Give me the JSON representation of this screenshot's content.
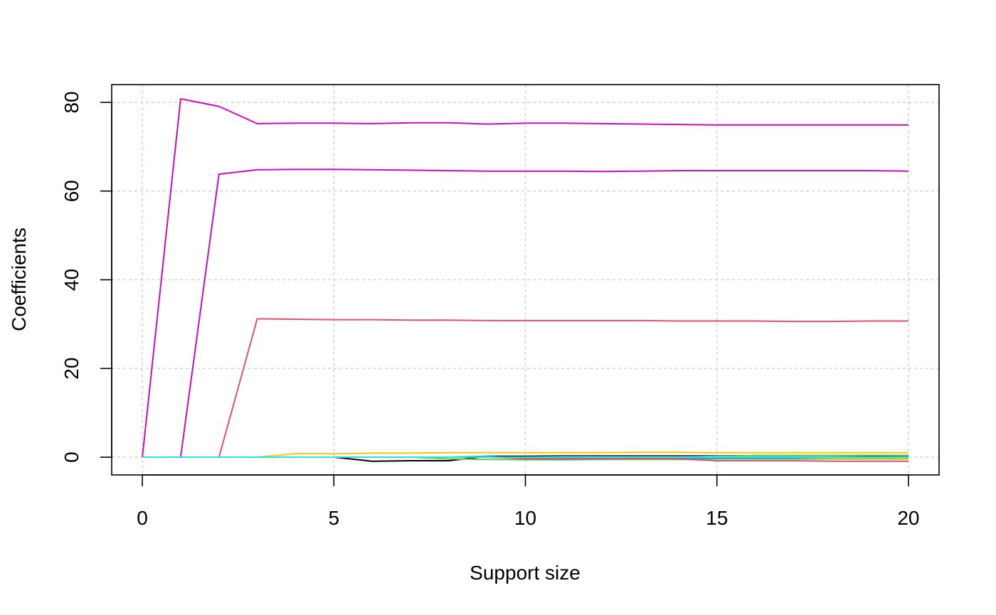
{
  "chart_data": {
    "type": "line",
    "title": "",
    "xlabel": "Support size",
    "ylabel": "Coefficients",
    "xlim": [
      -0.8,
      20.8
    ],
    "ylim": [
      -4,
      84
    ],
    "xticks": [
      0,
      5,
      10,
      15,
      20
    ],
    "yticks": [
      0,
      20,
      40,
      60,
      80
    ],
    "grid": true,
    "legend": "none",
    "x": [
      0,
      1,
      2,
      3,
      4,
      5,
      6,
      7,
      8,
      9,
      10,
      11,
      12,
      13,
      14,
      15,
      16,
      17,
      18,
      19,
      20
    ],
    "series": [
      {
        "color": "#CD0BBC",
        "values": [
          0,
          80.8,
          79.1,
          75.2,
          75.3,
          75.3,
          75.2,
          75.4,
          75.4,
          75.1,
          75.3,
          75.3,
          75.2,
          75.1,
          75.0,
          74.9,
          74.9,
          74.9,
          74.9,
          74.9,
          74.9
        ]
      },
      {
        "color": "#CD0BBC",
        "values": [
          0,
          0,
          63.8,
          64.8,
          64.9,
          64.9,
          64.8,
          64.7,
          64.6,
          64.5,
          64.5,
          64.5,
          64.4,
          64.5,
          64.6,
          64.6,
          64.6,
          64.6,
          64.6,
          64.6,
          64.5
        ]
      },
      {
        "color": "#DF536B",
        "values": [
          0,
          0,
          0,
          31.2,
          31.1,
          31.0,
          31.0,
          30.9,
          30.9,
          30.8,
          30.8,
          30.8,
          30.8,
          30.8,
          30.7,
          30.7,
          30.7,
          30.6,
          30.6,
          30.7,
          30.7
        ]
      },
      {
        "color": "#F5C710",
        "values": [
          0,
          0,
          0,
          0,
          0.8,
          0.8,
          0.9,
          0.9,
          1.0,
          1.0,
          1.0,
          1.0,
          1.0,
          1.1,
          1.1,
          1.0,
          1.0,
          1.0,
          1.0,
          1.0,
          1.0
        ]
      },
      {
        "color": "#000000",
        "values": [
          0,
          0,
          0,
          0,
          0,
          0,
          -0.9,
          -0.8,
          -0.8,
          0.2,
          0.2,
          0.3,
          0.3,
          0.3,
          0.3,
          0.3,
          0.3,
          0.3,
          0.3,
          0.3,
          0.3
        ]
      },
      {
        "color": "#61D04F",
        "values": [
          0,
          0,
          0,
          0,
          0,
          0,
          0,
          0,
          -0.4,
          -0.5,
          -0.6,
          -0.6,
          -0.5,
          -0.5,
          -0.5,
          -0.4,
          -0.4,
          -0.4,
          -0.4,
          -0.4,
          -0.4
        ]
      },
      {
        "color": "#2297E6",
        "values": [
          0,
          0,
          0,
          0,
          0,
          0,
          0,
          0,
          0,
          0.2,
          -0.4,
          -0.4,
          -0.4,
          -0.3,
          -0.3,
          -0.2,
          -0.2,
          -0.2,
          -0.2,
          -0.2,
          -0.2
        ]
      },
      {
        "color": "#28E2E5",
        "values": [
          0,
          0,
          0,
          0,
          0,
          0,
          0,
          0,
          0,
          0,
          0,
          0,
          0,
          0,
          0,
          0.2,
          0.2,
          0.2,
          0.2,
          0.2,
          0.2
        ]
      },
      {
        "color": "#9E9E9E",
        "values": [
          0,
          0,
          0,
          0,
          0,
          0,
          0,
          0,
          0,
          0,
          0,
          0.1,
          0.1,
          0.1,
          0.1,
          0.1,
          0.1,
          0.1,
          0.1,
          0.1,
          0.1
        ]
      },
      {
        "color": "#DF536B",
        "values": [
          0,
          0,
          0,
          0,
          0,
          0,
          0,
          0,
          0,
          0,
          -0.3,
          -0.3,
          -0.3,
          -0.3,
          -0.4,
          -0.8,
          -0.8,
          -0.8,
          -0.9,
          -0.9,
          -0.9
        ]
      },
      {
        "color": "#61D04F",
        "values": [
          0,
          0,
          0,
          0,
          0,
          0,
          0,
          0,
          0,
          0,
          0,
          0,
          0,
          0,
          0,
          0,
          0.4,
          0.4,
          0.4,
          0.4,
          0.4
        ]
      },
      {
        "color": "#2297E6",
        "values": [
          0,
          0,
          0,
          0,
          0,
          0,
          0,
          0,
          0,
          0,
          0,
          0,
          0,
          0,
          0,
          0,
          0,
          -0.1,
          -0.1,
          -0.1,
          -0.1
        ]
      },
      {
        "color": "#F5C710",
        "values": [
          0,
          0,
          0,
          0,
          0,
          0,
          0,
          0,
          0,
          0,
          0,
          0,
          0,
          0,
          0,
          0,
          0,
          0,
          -0.2,
          -0.2,
          -0.2
        ]
      },
      {
        "color": "#000000",
        "values": [
          0,
          0,
          0,
          0,
          0,
          0,
          0,
          0,
          0,
          0,
          0,
          0,
          0,
          0,
          0,
          0,
          0,
          0,
          0,
          0.1,
          0.1
        ]
      },
      {
        "color": "#28E2E5",
        "values": [
          0,
          0,
          0,
          0,
          0,
          0,
          0,
          0,
          0,
          0,
          0,
          0,
          0,
          0,
          0,
          0,
          0,
          0,
          0,
          0,
          0.05
        ]
      }
    ]
  }
}
